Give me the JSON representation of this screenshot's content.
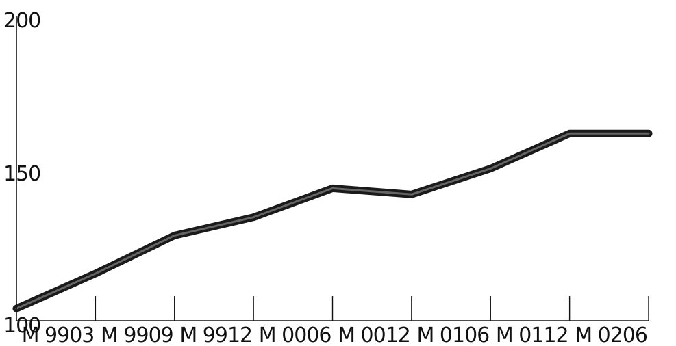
{
  "chart_data": {
    "type": "line",
    "title": "",
    "xlabel": "",
    "ylabel": "",
    "ylim": [
      100,
      200
    ],
    "yticks": [
      "200",
      "150",
      "100"
    ],
    "x_tick_labels": [
      "M 9903",
      "M 9909",
      "M 9912",
      "M 0006",
      "M 0012",
      "M 0106",
      "M 0112",
      "M 0206"
    ],
    "grid": false,
    "legend": "none",
    "line_color": "#1a1a1a",
    "series": [
      {
        "x": [
          0,
          1,
          2,
          3,
          4,
          5,
          6,
          7,
          8
        ],
        "values": [
          104,
          115.5,
          128,
          134,
          143.5,
          141.5,
          150,
          161.5,
          161.5
        ]
      }
    ]
  }
}
